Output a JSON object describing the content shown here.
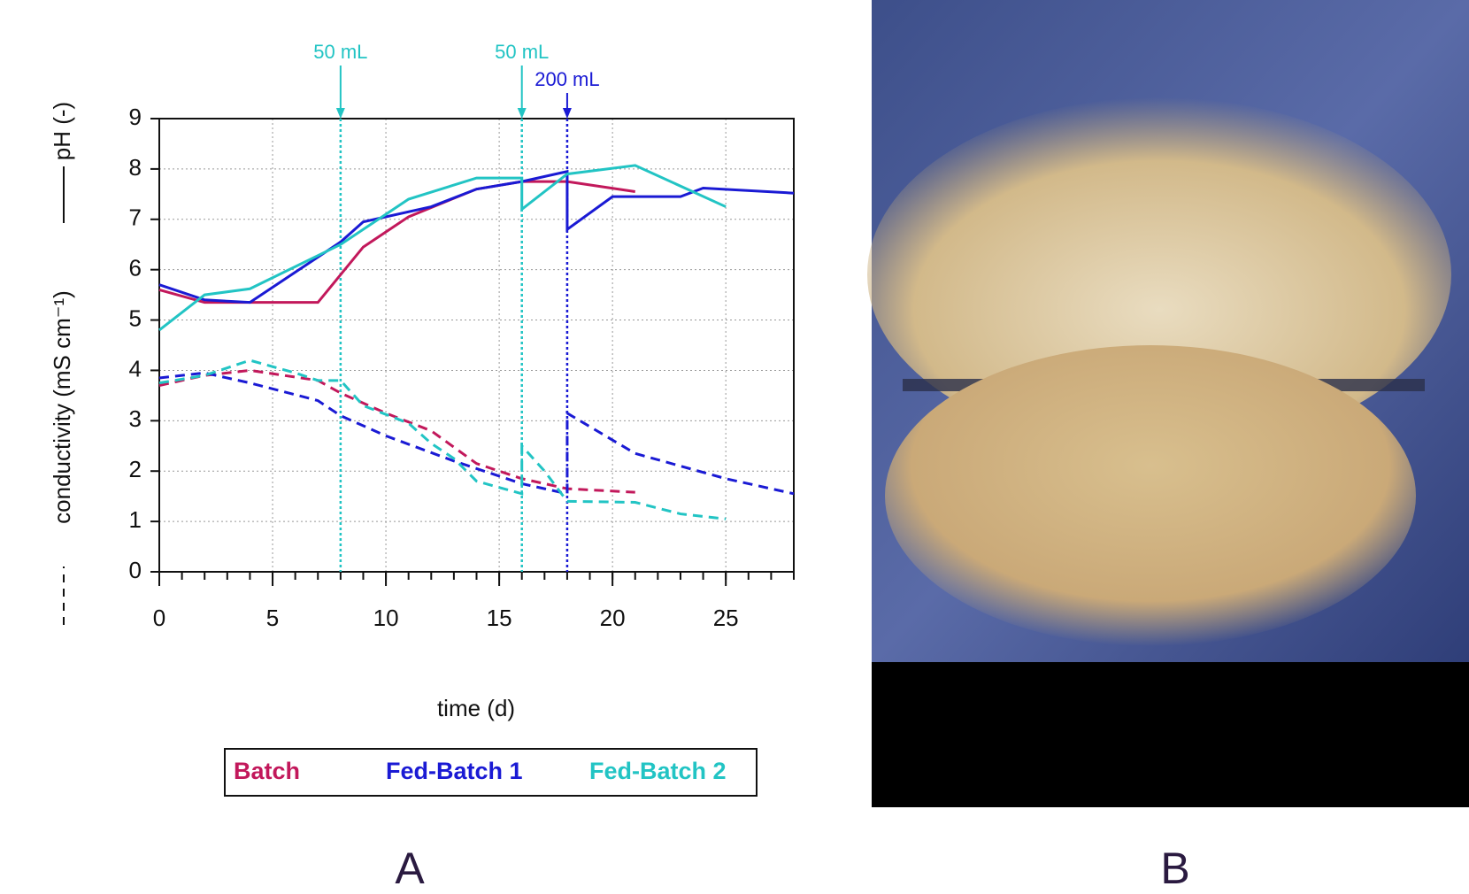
{
  "chart_data": {
    "type": "line",
    "x_label": "time (d)",
    "y_label_conductivity": "conductivity (mS cm⁻¹)",
    "y_label_ph": "pH (-)",
    "xlim": [
      0,
      28
    ],
    "xticks": [
      0,
      5,
      10,
      15,
      20,
      25
    ],
    "ylim": [
      0,
      9
    ],
    "yticks": [
      0,
      1,
      2,
      3,
      4,
      5,
      6,
      7,
      8,
      9
    ],
    "grid": true,
    "annotations": [
      {
        "x": 8,
        "label": "50 mL",
        "color": "#22c4c4"
      },
      {
        "x": 16,
        "label": "50 mL",
        "color": "#22c4c4"
      },
      {
        "x": 18,
        "label": "200 mL",
        "color": "#1a1ad4"
      }
    ],
    "series": [
      {
        "name": "Batch",
        "color": "#c2185b",
        "ph_x": [
          0,
          2,
          7,
          9,
          11,
          14,
          16,
          18,
          21
        ],
        "ph": [
          5.6,
          5.35,
          5.35,
          6.45,
          7.05,
          7.6,
          7.75,
          7.75,
          7.55
        ],
        "cond_x": [
          0,
          2,
          4,
          7,
          8,
          10,
          12,
          14,
          16,
          18,
          21
        ],
        "cond": [
          3.7,
          3.9,
          4.0,
          3.8,
          3.55,
          3.15,
          2.8,
          2.15,
          1.85,
          1.65,
          1.58
        ]
      },
      {
        "name": "Fed-Batch 1",
        "color": "#1a1ad4",
        "ph_x": [
          0,
          2,
          4,
          8,
          9,
          12,
          14,
          16,
          18,
          18,
          20,
          23,
          24,
          28
        ],
        "ph": [
          5.7,
          5.4,
          5.35,
          6.55,
          6.95,
          7.25,
          7.6,
          7.75,
          7.95,
          6.8,
          7.45,
          7.45,
          7.62,
          7.52
        ],
        "cond_x": [
          0,
          2,
          4,
          7,
          8,
          10,
          13,
          16,
          18,
          18,
          21,
          25,
          28
        ],
        "cond": [
          3.85,
          3.95,
          3.75,
          3.4,
          3.1,
          2.7,
          2.2,
          1.75,
          1.55,
          3.15,
          2.35,
          1.85,
          1.55
        ]
      },
      {
        "name": "Fed-Batch 2",
        "color": "#22c4c4",
        "ph_x": [
          0,
          2,
          4,
          8,
          11,
          14,
          16,
          16,
          18,
          21,
          25
        ],
        "ph": [
          4.8,
          5.5,
          5.62,
          6.5,
          7.4,
          7.82,
          7.82,
          7.2,
          7.9,
          8.07,
          7.25
        ],
        "cond_x": [
          0,
          2,
          4,
          6,
          7,
          8,
          9,
          11,
          12,
          13,
          14,
          16,
          16,
          17,
          18,
          21,
          23,
          25
        ],
        "cond": [
          3.75,
          3.9,
          4.2,
          3.95,
          3.8,
          3.8,
          3.3,
          2.95,
          2.55,
          2.25,
          1.8,
          1.55,
          2.5,
          2.0,
          1.4,
          1.38,
          1.15,
          1.05
        ]
      }
    ]
  },
  "panels": {
    "a": "A",
    "b": "B"
  }
}
